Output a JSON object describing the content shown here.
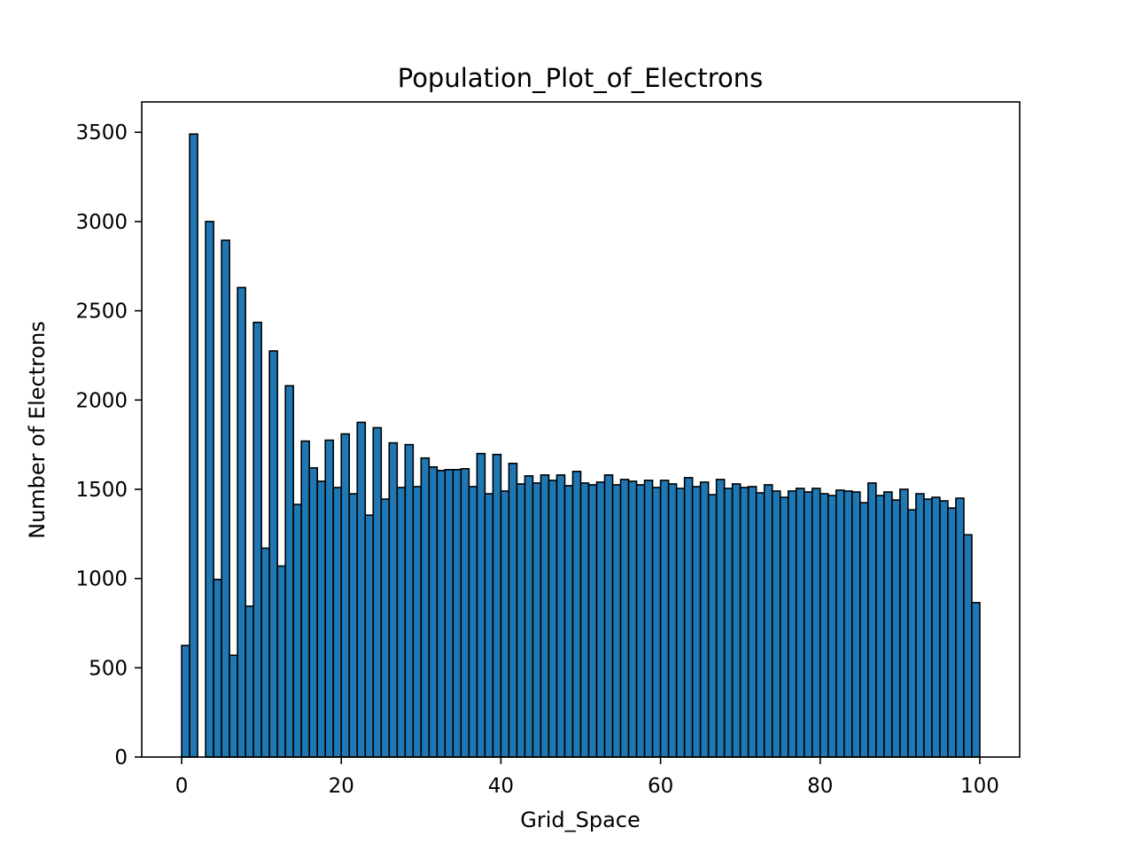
{
  "chart_data": {
    "type": "bar",
    "title": "Population_Plot_of_Electrons",
    "xlabel": "Grid_Space",
    "ylabel": "Number of Electrons",
    "xlim": [
      -5,
      105
    ],
    "ylim": [
      0,
      3670
    ],
    "x_ticks": [
      0,
      20,
      40,
      60,
      80,
      100
    ],
    "y_ticks": [
      0,
      500,
      1000,
      1500,
      2000,
      2500,
      3000,
      3500
    ],
    "bin_edges_range": [
      0,
      100
    ],
    "bar_color": "#1f77b4",
    "edge_color": "#000000",
    "grid": false,
    "values": [
      625,
      3490,
      0,
      3000,
      995,
      2895,
      570,
      2630,
      845,
      2435,
      1170,
      2275,
      1070,
      2080,
      1415,
      1770,
      1620,
      1545,
      1775,
      1510,
      1810,
      1475,
      1875,
      1355,
      1845,
      1445,
      1760,
      1510,
      1750,
      1515,
      1675,
      1625,
      1605,
      1610,
      1610,
      1615,
      1515,
      1700,
      1475,
      1695,
      1490,
      1645,
      1530,
      1575,
      1535,
      1580,
      1550,
      1580,
      1520,
      1600,
      1535,
      1525,
      1540,
      1580,
      1525,
      1555,
      1545,
      1525,
      1550,
      1510,
      1550,
      1530,
      1505,
      1565,
      1515,
      1540,
      1470,
      1555,
      1505,
      1530,
      1510,
      1515,
      1480,
      1525,
      1490,
      1455,
      1490,
      1505,
      1485,
      1505,
      1475,
      1465,
      1495,
      1490,
      1485,
      1425,
      1535,
      1465,
      1485,
      1440,
      1500,
      1385,
      1475,
      1445,
      1455,
      1435,
      1395,
      1450,
      1245,
      865
    ]
  }
}
